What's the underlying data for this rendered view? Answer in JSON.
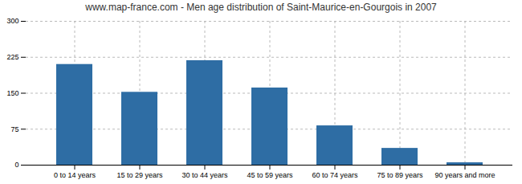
{
  "chart_data": {
    "type": "bar",
    "title": "www.map-france.com - Men age distribution of Saint-Maurice-en-Gourgois in 2007",
    "categories": [
      "0 to 14 years",
      "15 to 29 years",
      "30 to 44 years",
      "45 to 59 years",
      "60 to 74 years",
      "75 to 89 years",
      "90 years and more"
    ],
    "values": [
      210,
      152,
      218,
      161,
      82,
      35,
      5
    ],
    "color": "#2E6DA4",
    "ylim": [
      0,
      300
    ],
    "yticks": [
      0,
      75,
      150,
      225,
      300
    ],
    "grid": true
  }
}
